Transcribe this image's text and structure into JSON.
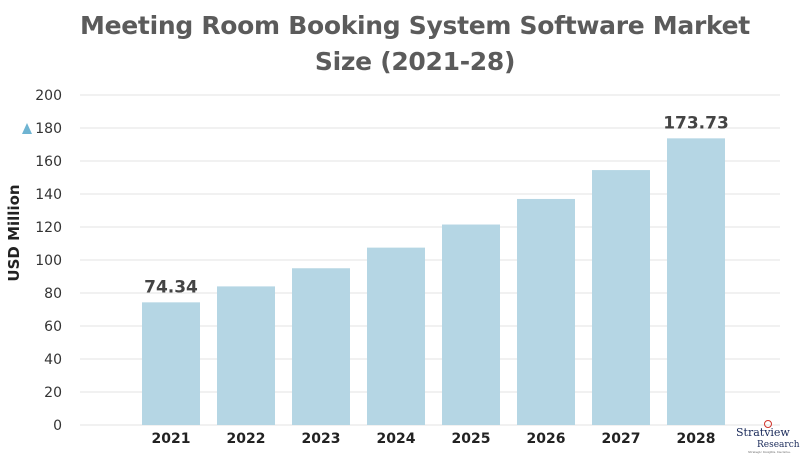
{
  "chart_data": {
    "type": "bar",
    "title": [
      "Meeting Room Booking System Software Market",
      "Size (2021-28)"
    ],
    "ylabel": "USD Million",
    "xlabel": "",
    "categories": [
      "2021",
      "2022",
      "2023",
      "2024",
      "2025",
      "2026",
      "2027",
      "2028"
    ],
    "values": [
      74.34,
      84,
      95,
      107.5,
      121.5,
      137,
      154.5,
      173.73
    ],
    "data_labels": [
      "74.34",
      "",
      "",
      "",
      "",
      "",
      "",
      "173.73"
    ],
    "ylim": [
      0,
      200
    ],
    "yticks": [
      "0",
      "20",
      "40",
      "60",
      "80",
      "100",
      "120",
      "140",
      "160",
      "180",
      "200"
    ],
    "grid": true,
    "bar_color": "#b5d6e4"
  },
  "logo": {
    "brand": "Stratview",
    "sub": "Research",
    "tag": "Strategic Insights. Decisive."
  }
}
